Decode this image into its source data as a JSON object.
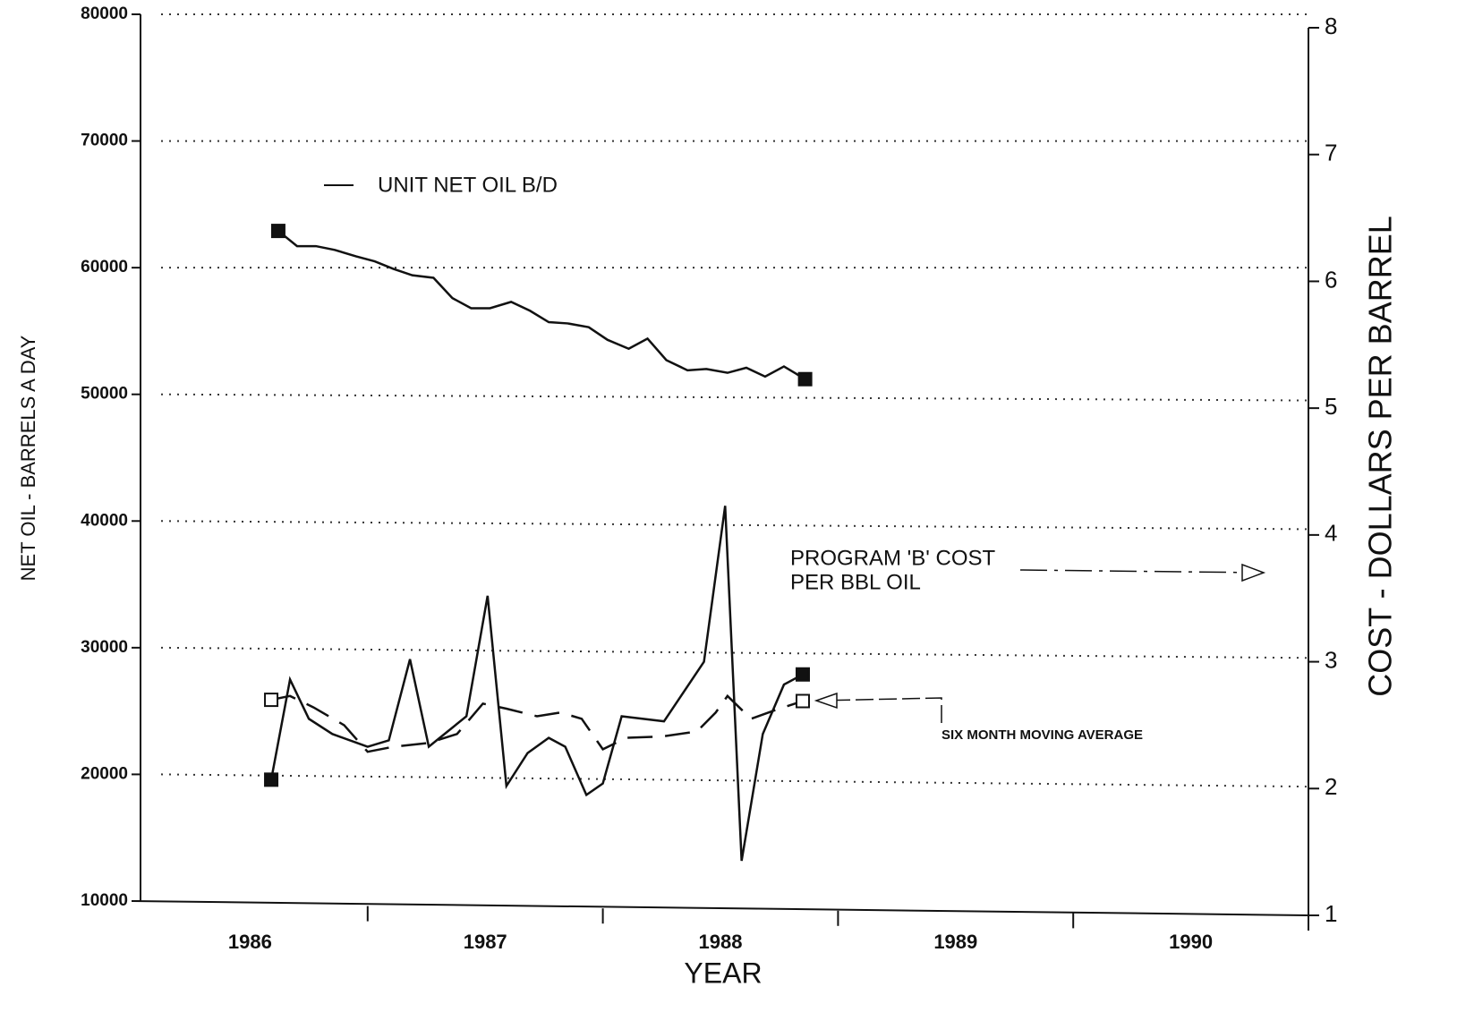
{
  "chart_data": {
    "type": "line",
    "ylabel": "NET OIL - BARRELS A DAY",
    "y2label": "COST - DOLLARS PER BARREL",
    "xlabel": "YEAR",
    "xlim": [
      1986,
      1991
    ],
    "xticks": [
      {
        "value": 1986.5,
        "label": "1986"
      },
      {
        "value": 1987.5,
        "label": "1987"
      },
      {
        "value": 1988.5,
        "label": "1988"
      },
      {
        "value": 1989.5,
        "label": "1989"
      },
      {
        "value": 1990.5,
        "label": "1990"
      }
    ],
    "ylim": [
      10000,
      80000
    ],
    "yticks": [
      10000,
      20000,
      30000,
      40000,
      50000,
      60000,
      70000,
      80000
    ],
    "y2lim": [
      1,
      8
    ],
    "y2ticks": [
      1,
      2,
      3,
      4,
      5,
      6,
      7,
      8
    ],
    "grid": true,
    "series": [
      {
        "name": "UNIT NET OIL B/D",
        "color": "#111",
        "dash": false,
        "marker": "filled",
        "x": [
          1986.62,
          1986.7,
          1986.78,
          1986.86,
          1986.95,
          1987.03,
          1987.11,
          1987.19,
          1987.28,
          1987.36,
          1987.44,
          1987.52,
          1987.61,
          1987.69,
          1987.77,
          1987.85,
          1987.94,
          1988.02,
          1988.11,
          1988.19,
          1988.27,
          1988.36,
          1988.44,
          1988.53,
          1988.61,
          1988.69,
          1988.77,
          1988.86
        ],
        "values": [
          62900,
          61700,
          61700,
          61400,
          60900,
          60500,
          59900,
          59400,
          59200,
          57600,
          56800,
          56800,
          57300,
          56600,
          55700,
          55600,
          55300,
          54300,
          53600,
          54400,
          52700,
          51900,
          52000,
          51700,
          52100,
          51400,
          52200,
          51200
        ]
      },
      {
        "axis": "y2",
        "color": "#111",
        "dash": false,
        "marker": "filled",
        "x": [
          1986.59,
          1986.67,
          1986.75,
          1986.85,
          1987.0,
          1987.09,
          1987.18,
          1987.26,
          1987.34,
          1987.42,
          1987.51,
          1987.59,
          1987.68,
          1987.77,
          1987.84,
          1987.93,
          1988.0,
          1988.08,
          1988.26,
          1988.43,
          1988.52,
          1988.59,
          1988.68,
          1988.77,
          1988.85
        ],
        "values": [
          2.07,
          2.86,
          2.55,
          2.43,
          2.33,
          2.38,
          3.02,
          2.33,
          2.45,
          2.57,
          3.52,
          2.02,
          2.28,
          2.4,
          2.33,
          1.95,
          2.04,
          2.57,
          2.53,
          3.0,
          4.23,
          1.43,
          2.43,
          2.82,
          2.9
        ]
      },
      {
        "axis": "y2",
        "color": "#111",
        "dash": true,
        "marker": "open",
        "x": [
          1986.59,
          1986.67,
          1986.77,
          1986.9,
          1987.0,
          1987.11,
          1987.26,
          1987.38,
          1987.49,
          1987.59,
          1987.72,
          1987.82,
          1987.91,
          1988.0,
          1988.1,
          1988.25,
          1988.4,
          1988.48,
          1988.53,
          1988.63,
          1988.75,
          1988.85
        ],
        "values": [
          2.7,
          2.73,
          2.64,
          2.5,
          2.29,
          2.33,
          2.36,
          2.43,
          2.67,
          2.63,
          2.57,
          2.6,
          2.55,
          2.31,
          2.4,
          2.41,
          2.45,
          2.6,
          2.73,
          2.55,
          2.63,
          2.69
        ]
      }
    ],
    "annotations": [
      "PROGRAM 'B' COST",
      "PER BBL OIL",
      "SIX MONTH MOVING AVERAGE"
    ]
  }
}
